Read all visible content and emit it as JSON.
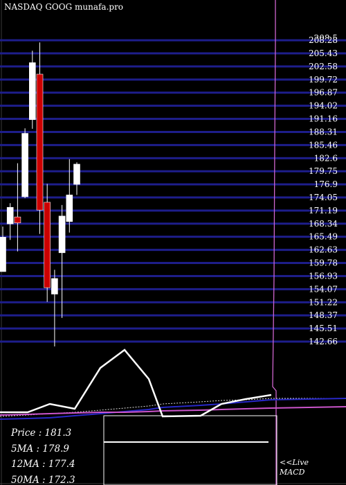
{
  "title": "NASDAQ GOOG munafa.pro",
  "chart_data": {
    "type": "candlestick",
    "price_levels": [
      208.5,
      208.28,
      205.43,
      202.58,
      199.72,
      196.87,
      194.02,
      191.16,
      188.31,
      185.46,
      182.6,
      179.75,
      176.9,
      174.05,
      171.19,
      168.34,
      165.49,
      162.63,
      159.78,
      156.93,
      154.07,
      151.22,
      148.37,
      145.51,
      142.66
    ],
    "price_labels": [
      "208.5",
      "208.28",
      "205.43",
      "202.58",
      "199.72",
      "196.87",
      "194.02",
      "191.16",
      "188.31",
      "185.46",
      "182.6",
      "179.75",
      "176.9",
      "174.05",
      "171.19",
      "168.34",
      "165.49",
      "162.63",
      "159.78",
      "156.93",
      "154.07",
      "151.22",
      "148.37",
      "145.51",
      "142.66"
    ],
    "candles": [
      {
        "o": 157.9,
        "h": 167.7,
        "l": 157.9,
        "c": 165.4,
        "dir": "up"
      },
      {
        "o": 168.3,
        "h": 172.8,
        "l": 164.8,
        "c": 171.9,
        "dir": "up"
      },
      {
        "o": 169.8,
        "h": 181.5,
        "l": 162.3,
        "c": 168.5,
        "dir": "down"
      },
      {
        "o": 174.2,
        "h": 189.1,
        "l": 173.9,
        "c": 188.0,
        "dir": "up"
      },
      {
        "o": 191.0,
        "h": 206.0,
        "l": 189.0,
        "c": 203.4,
        "dir": "up"
      },
      {
        "o": 200.9,
        "h": 207.8,
        "l": 166.1,
        "c": 171.3,
        "dir": "down"
      },
      {
        "o": 173.0,
        "h": 177.0,
        "l": 151.3,
        "c": 154.4,
        "dir": "down"
      },
      {
        "o": 153.0,
        "h": 158.3,
        "l": 141.6,
        "c": 156.4,
        "dir": "up"
      },
      {
        "o": 162.0,
        "h": 172.4,
        "l": 147.8,
        "c": 170.0,
        "dir": "up"
      },
      {
        "o": 168.8,
        "h": 182.4,
        "l": 166.4,
        "c": 174.6,
        "dir": "up"
      },
      {
        "o": 176.9,
        "h": 181.7,
        "l": 174.6,
        "c": 181.3,
        "dir": "up"
      }
    ],
    "ma_panel": {
      "white": [
        10,
        10,
        22,
        15,
        74,
        100,
        58,
        4,
        5,
        22,
        29,
        35
      ],
      "blue": [
        0,
        1,
        2,
        5,
        8,
        11,
        14,
        17,
        20,
        22,
        25,
        28
      ],
      "pink": [
        6,
        7,
        8,
        9,
        10,
        10,
        11,
        12,
        13,
        14,
        15,
        16
      ],
      "dotted": [
        4,
        6,
        8,
        10,
        13,
        16,
        19,
        22,
        25,
        27,
        28,
        30
      ]
    },
    "macd_value": 0.62,
    "stats": [
      {
        "label": "Price",
        "value": "181.3"
      },
      {
        "label": "5MA",
        "value": "178.9"
      },
      {
        "label": "12MA",
        "value": "177.4"
      },
      {
        "label": "50MA",
        "value": "172.3"
      }
    ],
    "macd_label": [
      "<<Live",
      "MACD"
    ],
    "colors": {
      "grid": "#1e1e8c",
      "down": "#cc0000",
      "up": "#ffffff",
      "wick": "#ffffff",
      "volume_line": "#d066d0",
      "ma_blue": "#2828c8",
      "ma_pink": "#cc55cc"
    }
  }
}
